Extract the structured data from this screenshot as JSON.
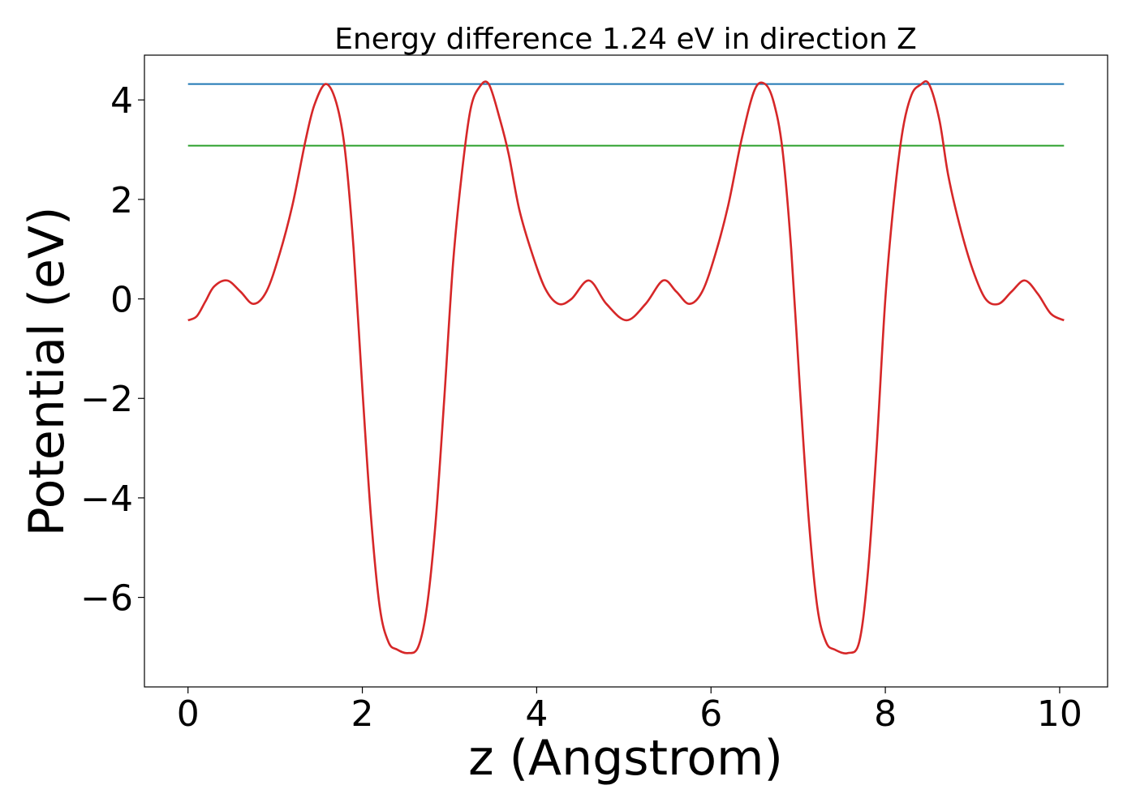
{
  "chart_data": {
    "type": "line",
    "title": "Energy difference 1.24 eV in direction Z",
    "xlabel": "z (Angstrom)",
    "ylabel": "Potential (eV)",
    "xlim": [
      -0.5,
      10.55
    ],
    "ylim": [
      -7.8,
      4.9
    ],
    "xticks": [
      0,
      2,
      4,
      6,
      8,
      10
    ],
    "xtick_labels": [
      "0",
      "2",
      "4",
      "6",
      "8",
      "10"
    ],
    "yticks": [
      4,
      2,
      0,
      -2,
      -4,
      -6
    ],
    "ytick_labels": [
      "4",
      "2",
      "0",
      "−2",
      "−4",
      "−6"
    ],
    "grid": false,
    "legend": "none",
    "series": [
      {
        "color": "#d62728",
        "kind": "curve",
        "x": [
          0.0,
          0.1,
          0.2,
          0.3,
          0.45,
          0.6,
          0.75,
          0.9,
          1.05,
          1.2,
          1.35,
          1.45,
          1.58,
          1.7,
          1.8,
          1.9,
          2.0,
          2.1,
          2.2,
          2.3,
          2.4,
          2.52,
          2.64,
          2.74,
          2.84,
          2.94,
          3.04,
          3.14,
          3.24,
          3.34,
          3.45,
          3.58,
          3.68,
          3.8,
          3.95,
          4.1,
          4.25,
          4.4,
          4.6,
          4.8,
          5.03,
          5.25,
          5.45,
          5.6,
          5.75,
          5.9,
          6.05,
          6.2,
          6.35,
          6.5,
          6.62,
          6.72,
          6.82,
          6.92,
          7.02,
          7.12,
          7.22,
          7.32,
          7.42,
          7.57,
          7.7,
          7.8,
          7.9,
          8.0,
          8.1,
          8.2,
          8.3,
          8.4,
          8.5,
          8.62,
          8.72,
          8.85,
          9.0,
          9.15,
          9.3,
          9.45,
          9.6,
          9.75,
          9.9,
          10.05
        ],
        "y": [
          -0.43,
          -0.35,
          -0.05,
          0.25,
          0.37,
          0.15,
          -0.1,
          0.15,
          0.9,
          1.9,
          3.2,
          3.9,
          4.32,
          3.95,
          3.0,
          1.0,
          -1.8,
          -4.4,
          -6.2,
          -6.9,
          -7.05,
          -7.12,
          -7.0,
          -6.2,
          -4.5,
          -2.0,
          0.7,
          2.5,
          3.8,
          4.25,
          4.32,
          3.6,
          2.9,
          1.8,
          0.9,
          0.2,
          -0.1,
          0.0,
          0.37,
          -0.1,
          -0.43,
          -0.1,
          0.37,
          0.15,
          -0.1,
          0.15,
          0.9,
          1.9,
          3.2,
          4.2,
          4.32,
          3.95,
          3.0,
          1.0,
          -1.8,
          -4.4,
          -6.2,
          -6.9,
          -7.05,
          -7.12,
          -6.9,
          -5.5,
          -3.0,
          0.0,
          2.0,
          3.4,
          4.1,
          4.3,
          4.32,
          3.6,
          2.5,
          1.5,
          0.6,
          0.0,
          -0.1,
          0.15,
          0.37,
          0.1,
          -0.3,
          -0.43
        ]
      },
      {
        "color": "#1f77b4",
        "kind": "hline",
        "x": [
          0.0,
          10.05
        ],
        "y": [
          4.32,
          4.32
        ]
      },
      {
        "color": "#2ca02c",
        "kind": "hline",
        "x": [
          0.0,
          10.05
        ],
        "y": [
          3.08,
          3.08
        ]
      }
    ]
  }
}
